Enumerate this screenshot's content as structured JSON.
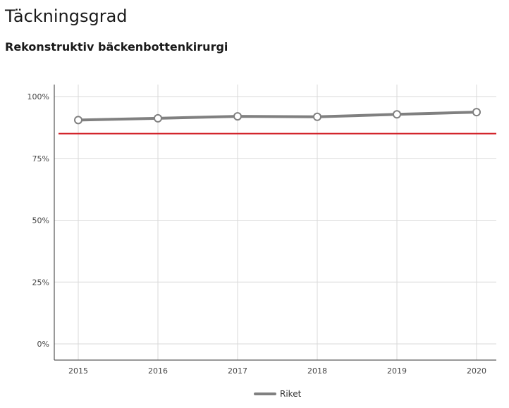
{
  "header": {
    "title": "Täckningsgrad",
    "subtitle": "Rekonstruktiv bäckenbottenkirurgi"
  },
  "chart_data": {
    "type": "line",
    "x": [
      2015,
      2016,
      2017,
      2018,
      2019,
      2020
    ],
    "x_tick_labels": [
      "2015",
      "2016",
      "2017",
      "2018",
      "2019",
      "2020"
    ],
    "y_tick_labels": [
      "0%",
      "25%",
      "50%",
      "75%",
      "100%"
    ],
    "ylim": [
      0,
      100
    ],
    "grid": true,
    "legend_position": "bottom",
    "series": [
      {
        "name": "Riket",
        "values": [
          90.5,
          91.2,
          92.0,
          91.8,
          92.8,
          93.7
        ],
        "color": "#808080"
      }
    ],
    "reference_line": {
      "value": 85,
      "color": "#d21f26"
    }
  }
}
